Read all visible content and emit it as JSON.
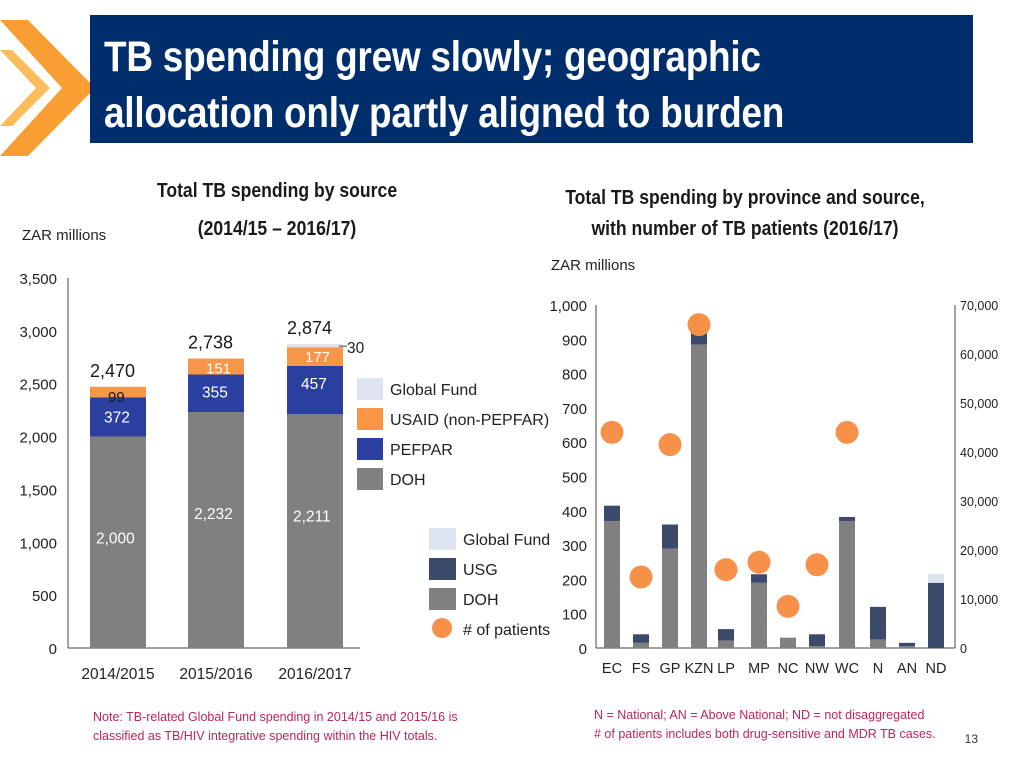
{
  "slide": {
    "title_line1": "TB spending grew slowly; geographic",
    "title_line2": "allocation only partly aligned to burden",
    "page_number": "13",
    "note_left_line1": "Note: TB-related Global Fund spending in 2014/15 and 2015/16 is",
    "note_left_line2": "classified as TB/HIV integrative spending within the HIV totals.",
    "note_right_line1": "N = National; AN = Above National; ND = not disaggregated",
    "note_right_line2": "# of patients includes both drug-sensitive and MDR TB cases."
  },
  "colors": {
    "title_bg": "#002e6d",
    "chevron": "#f7941d",
    "global_fund": "#dde3ef",
    "usaid": "#f79646",
    "pefpar": "#2a3fa0",
    "usg": "#3b4a6b",
    "doh": "#808080",
    "patients": "#f7914a"
  },
  "chart_data": [
    {
      "type": "stacked-bar",
      "title_line1": "Total TB spending by source",
      "title_line2": "(2014/15 – 2016/17)",
      "ylabel": "ZAR millions",
      "ylim": [
        0,
        3500
      ],
      "yticks": [
        0,
        500,
        1000,
        1500,
        2000,
        2500,
        3000,
        3500
      ],
      "ytick_labels": [
        "0",
        "500",
        "1,000",
        "1,500",
        "2,000",
        "2,500",
        "3,000",
        "3,500"
      ],
      "categories": [
        "2014/2015",
        "2015/2016",
        "2016/2017"
      ],
      "series": [
        {
          "name": "DOH",
          "color": "#808080",
          "values": [
            2000,
            2232,
            2211
          ],
          "labels": [
            "2,000",
            "2,232",
            "2,211"
          ]
        },
        {
          "name": "PEFPAR",
          "color": "#2a3fa0",
          "values": [
            372,
            355,
            457
          ],
          "labels": [
            "372",
            "355",
            "457"
          ]
        },
        {
          "name": "USAID (non-PEPFAR)",
          "color": "#f79646",
          "values": [
            99,
            151,
            177
          ],
          "labels": [
            "99",
            "151",
            "177"
          ]
        },
        {
          "name": "Global Fund",
          "color": "#dde3ef",
          "values": [
            0,
            0,
            30
          ],
          "labels": [
            "",
            "",
            "30"
          ]
        }
      ],
      "totals": [
        2470,
        2738,
        2874
      ],
      "total_labels": [
        "2,470",
        "2,738",
        "2,874"
      ],
      "legend": [
        "Global Fund",
        "USAID (non-PEPFAR)",
        "PEFPAR",
        "DOH"
      ]
    },
    {
      "type": "stacked-bar-with-scatter",
      "title_line1": "Total TB spending by province and source,",
      "title_line2": "with number of TB patients (2016/17)",
      "ylabel": "ZAR millions",
      "ylim": [
        0,
        1000
      ],
      "yticks": [
        0,
        100,
        200,
        300,
        400,
        500,
        600,
        700,
        800,
        900,
        1000
      ],
      "ytick_labels": [
        "0",
        "100",
        "200",
        "300",
        "400",
        "500",
        "600",
        "700",
        "800",
        "900",
        "1,000"
      ],
      "y2lim": [
        0,
        70000
      ],
      "y2ticks": [
        0,
        10000,
        20000,
        30000,
        40000,
        50000,
        60000,
        70000
      ],
      "y2tick_labels": [
        "0",
        "10,000",
        "20,000",
        "30,000",
        "40,000",
        "50,000",
        "60,000",
        "70,000"
      ],
      "categories": [
        "EC",
        "FS",
        "GP",
        "KZN",
        "LP",
        "MP",
        "NC",
        "NW",
        "WC",
        "N",
        "AN",
        "ND"
      ],
      "series": [
        {
          "name": "DOH",
          "color": "#808080",
          "values": [
            370,
            15,
            290,
            885,
            22,
            190,
            30,
            5,
            370,
            25,
            5,
            0
          ]
        },
        {
          "name": "USG",
          "color": "#3b4a6b",
          "values": [
            45,
            25,
            70,
            40,
            33,
            25,
            0,
            35,
            12,
            95,
            10,
            190
          ]
        },
        {
          "name": "Global Fund",
          "color": "#dde3ef",
          "values": [
            0,
            0,
            0,
            0,
            0,
            0,
            0,
            0,
            0,
            0,
            0,
            25
          ]
        }
      ],
      "patients": {
        "name": "# of patients",
        "color": "#f7914a",
        "values": [
          44000,
          14500,
          41500,
          66000,
          16000,
          17500,
          8500,
          17000,
          44000,
          null,
          null,
          null
        ]
      },
      "legend": [
        "Global Fund",
        "USG",
        "DOH",
        "# of patients"
      ]
    }
  ]
}
